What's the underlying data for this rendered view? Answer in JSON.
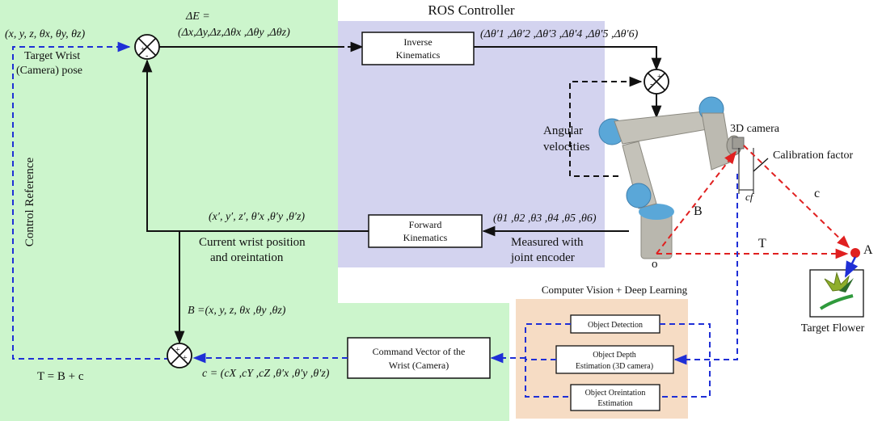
{
  "colors": {
    "green_region": "#ccf5cc",
    "purple_region": "#d3d3ef",
    "orange_region": "#f6dcc4",
    "blue_dashed": "#1f2fd6",
    "red_dashed": "#e02020",
    "black": "#111111",
    "robot_body": "#b8b6ae",
    "robot_joint": "#5aa7d8"
  },
  "titles": {
    "ros_controller": "ROS Controller",
    "cv_dl": "Computer Vision + Deep Learning"
  },
  "inputs": {
    "target_pose_tuple": "(x, y, z, θx, θy, θz)",
    "target_wrist_label_1": "Target Wrist",
    "target_wrist_label_2": "(Camera) pose",
    "control_reference": "Control Reference"
  },
  "error": {
    "line1": "ΔE =",
    "line2": "(Δx,Δy,Δz,Δθx ,Δθy ,Δθz)"
  },
  "blocks": {
    "inverse_kinematics_1": "Inverse",
    "inverse_kinematics_2": "Kinematics",
    "forward_kinematics_1": "Forward",
    "forward_kinematics_2": "Kinematics",
    "command_vector_1": "Command Vector of the",
    "command_vector_2": "Wrist (Camera)",
    "object_detection": "Object Detection",
    "object_depth_1": "Object Depth",
    "object_depth_2": "Estimation (3D camera)",
    "object_orientation_1": "Object Oreintation",
    "object_orientation_2": "Estimation"
  },
  "signals": {
    "delta_theta_prime": "(Δθ′1 ,Δθ′2 ,Δθ′3 ,Δθ′4 ,Δθ′5 ,Δθ′6)",
    "angular_velocities_1": "Angular",
    "angular_velocities_2": "velocities",
    "joint_angles": "(θ1 ,θ2 ,θ3 ,θ4 ,θ5 ,θ6)",
    "measured_1": "Measured with",
    "measured_2": "joint encoder",
    "current_pose_tuple": "(x′, y′, z′, θ′x ,θ′y ,θ′z)",
    "current_wrist_1": "Current wrist position",
    "current_wrist_2": "and oreintation",
    "b_vector": "B =(x, y, z, θx ,θy ,θz)",
    "c_vector": "c = (cX ,cY ,cZ ,θ′x ,θ′y ,θ′z)",
    "t_equation": "T = B + c"
  },
  "scene": {
    "camera_3d": "3D camera",
    "calibration_factor": "Calibration factor",
    "cf": "cf",
    "vec_b": "B",
    "vec_c": "c",
    "vec_t": "T",
    "point_a": "A",
    "origin_o": "o",
    "target_flower": "Target Flower"
  },
  "sum_signs": {
    "plus": "+",
    "minus": "-"
  }
}
